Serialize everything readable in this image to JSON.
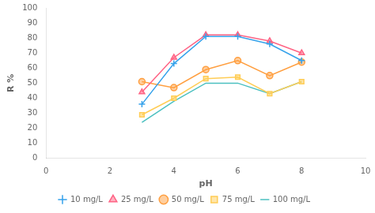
{
  "chart_data": {
    "type": "line",
    "x": [
      3,
      4,
      5,
      6,
      7,
      8
    ],
    "series": [
      {
        "name": "10 mg/L",
        "marker": "plus",
        "values": [
          36,
          63,
          81,
          81,
          76,
          65
        ]
      },
      {
        "name": "25 mg/L",
        "marker": "triangle",
        "values": [
          44,
          67,
          82,
          82,
          78,
          70
        ]
      },
      {
        "name": "50 mg/L",
        "marker": "circle",
        "values": [
          51,
          47,
          59,
          65,
          55,
          64
        ]
      },
      {
        "name": "75 mg/L",
        "marker": "square",
        "values": [
          29,
          40,
          53,
          54,
          43,
          51
        ]
      },
      {
        "name": "100 mg/L",
        "marker": "none",
        "values": [
          24,
          38,
          50,
          50,
          43,
          51
        ]
      }
    ],
    "xlabel": "pH",
    "ylabel": "R %",
    "xlim": [
      0,
      10
    ],
    "ylim": [
      0,
      100
    ],
    "xticks": [
      0,
      2,
      4,
      6,
      8,
      10
    ],
    "yticks": [
      0,
      10,
      20,
      30,
      40,
      50,
      60,
      70,
      80,
      90,
      100
    ],
    "grid": false,
    "legend": "bottom",
    "line_style": "solid"
  }
}
